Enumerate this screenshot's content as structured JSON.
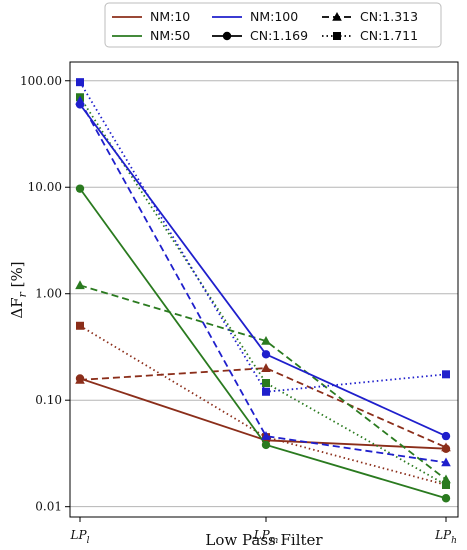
{
  "chart_data": {
    "type": "line",
    "title": "",
    "xlabel": "Low Pass Filter",
    "ylabel": "ΔF_r [%]",
    "ylabel_main": "ΔF",
    "ylabel_sub": "r",
    "ylabel_unit": " [%]",
    "yscale": "log",
    "ylim": [
      0.008,
      150
    ],
    "grid": "horizontal",
    "legend_position": "top-center",
    "categories": [
      "LP_l",
      "LP_m",
      "LP_h"
    ],
    "x_tick_labels": [
      {
        "main": "LP",
        "sub": "l"
      },
      {
        "main": "LP",
        "sub": "m"
      },
      {
        "main": "LP",
        "sub": "h"
      }
    ],
    "y_ticks": [
      {
        "value": 0.01,
        "label": "0.01"
      },
      {
        "value": 0.1,
        "label": "0.10"
      },
      {
        "value": 1,
        "label": "1.00"
      },
      {
        "value": 10,
        "label": "10.00"
      },
      {
        "value": 100,
        "label": "100.00"
      }
    ],
    "legend": [
      {
        "label": "NM:10",
        "kind": "color",
        "color": "#8b2e1a"
      },
      {
        "label": "NM:50",
        "kind": "color",
        "color": "#2a7a1f"
      },
      {
        "label": "NM:100",
        "kind": "color",
        "color": "#1f1fcc"
      },
      {
        "label": "CN:1.169",
        "kind": "style",
        "marker": "circle",
        "dash": "solid"
      },
      {
        "label": "CN:1.313",
        "kind": "style",
        "marker": "triangle",
        "dash": "dashed"
      },
      {
        "label": "CN:1.711",
        "kind": "style",
        "marker": "square",
        "dash": "dotted"
      }
    ],
    "series": [
      {
        "name": "NM:10, CN:1.169",
        "nm": "NM:10",
        "cn": "CN:1.169",
        "color": "#8b2e1a",
        "marker": "circle",
        "dash": "solid",
        "values": [
          0.16,
          0.042,
          0.035
        ]
      },
      {
        "name": "NM:10, CN:1.313",
        "nm": "NM:10",
        "cn": "CN:1.313",
        "color": "#8b2e1a",
        "marker": "triangle",
        "dash": "dashed",
        "values": [
          0.155,
          0.2,
          0.036
        ]
      },
      {
        "name": "NM:10, CN:1.711",
        "nm": "NM:10",
        "cn": "CN:1.711",
        "color": "#8b2e1a",
        "marker": "square",
        "dash": "dotted",
        "values": [
          0.5,
          0.045,
          0.016
        ]
      },
      {
        "name": "NM:50, CN:1.169",
        "nm": "NM:50",
        "cn": "CN:1.169",
        "color": "#2a7a1f",
        "marker": "circle",
        "dash": "solid",
        "values": [
          9.7,
          0.038,
          0.012
        ]
      },
      {
        "name": "NM:50, CN:1.313",
        "nm": "NM:50",
        "cn": "CN:1.313",
        "color": "#2a7a1f",
        "marker": "triangle",
        "dash": "dashed",
        "values": [
          1.2,
          0.36,
          0.018
        ]
      },
      {
        "name": "NM:50, CN:1.711",
        "nm": "NM:50",
        "cn": "CN:1.711",
        "color": "#2a7a1f",
        "marker": "square",
        "dash": "dotted",
        "values": [
          70,
          0.145,
          0.016
        ]
      },
      {
        "name": "NM:100, CN:1.169",
        "nm": "NM:100",
        "cn": "CN:1.169",
        "color": "#1f1fcc",
        "marker": "circle",
        "dash": "solid",
        "values": [
          60,
          0.27,
          0.046
        ]
      },
      {
        "name": "NM:100, CN:1.313",
        "nm": "NM:100",
        "cn": "CN:1.313",
        "color": "#1f1fcc",
        "marker": "triangle",
        "dash": "dashed",
        "values": [
          65,
          0.046,
          0.026
        ]
      },
      {
        "name": "NM:100, CN:1.711",
        "nm": "NM:100",
        "cn": "CN:1.711",
        "color": "#1f1fcc",
        "marker": "square",
        "dash": "dotted",
        "values": [
          97,
          0.12,
          0.175
        ]
      }
    ]
  }
}
